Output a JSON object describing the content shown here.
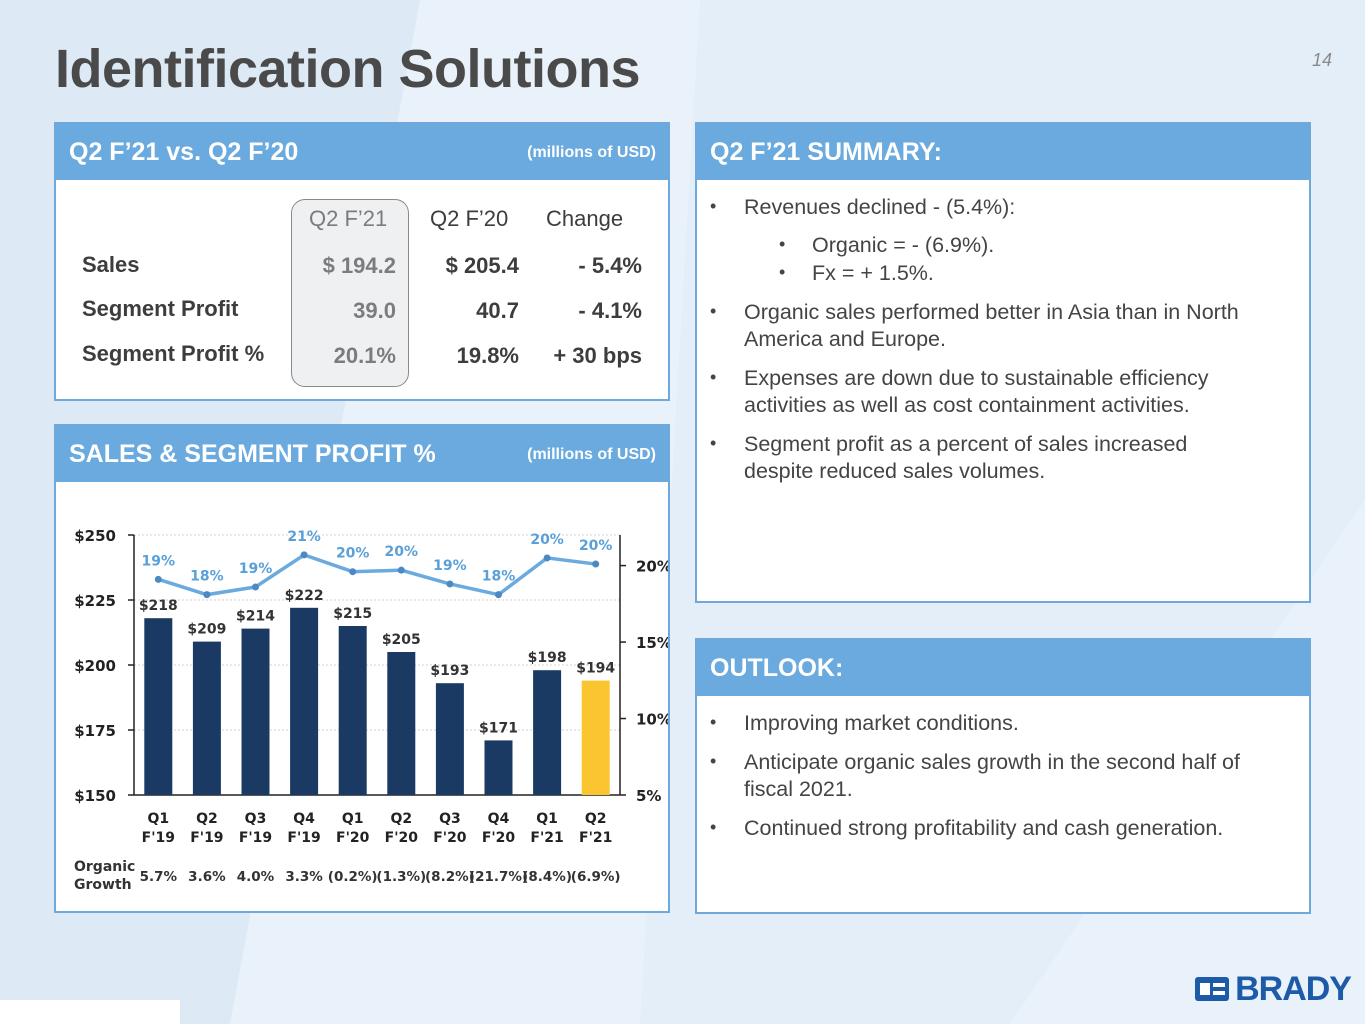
{
  "page": {
    "title": "Identification Solutions",
    "page_number": "14"
  },
  "comparison": {
    "header": "Q2 F’21 vs. Q2 F’20",
    "units": "(millions of USD)",
    "columns": [
      "Q2 F’21",
      "Q2 F’20",
      "Change"
    ],
    "rows": [
      {
        "label": "Sales",
        "q2_f21": "$ 194.2",
        "q2_f20": "$ 205.4",
        "change": "- 5.4%"
      },
      {
        "label": "Segment Profit",
        "q2_f21": "39.0",
        "q2_f20": "40.7",
        "change": "- 4.1%"
      },
      {
        "label": "Segment Profit %",
        "q2_f21": "20.1%",
        "q2_f20": "19.8%",
        "change": "+ 30 bps"
      }
    ]
  },
  "sales_panel": {
    "header": "SALES & SEGMENT PROFIT %",
    "units": "(millions of USD)",
    "organic_label_1": "Organic",
    "organic_label_2": "Growth",
    "organic_growth": [
      "5.7%",
      "3.6%",
      "4.0%",
      "3.3%",
      "(0.2%)",
      "(1.3%)",
      "(8.2%)",
      "(21.7%)",
      "(8.4%)",
      "(6.9%)"
    ]
  },
  "chart_data": {
    "type": "bar",
    "categories": [
      "Q1 F'19",
      "Q2 F'19",
      "Q3 F'19",
      "Q4 F'19",
      "Q1 F'20",
      "Q2 F'20",
      "Q3 F'20",
      "Q4 F'20",
      "Q1 F'21",
      "Q2 F'21"
    ],
    "category_lines": [
      [
        "Q1",
        "F'19"
      ],
      [
        "Q2",
        "F'19"
      ],
      [
        "Q3",
        "F'19"
      ],
      [
        "Q4",
        "F'19"
      ],
      [
        "Q1",
        "F'20"
      ],
      [
        "Q2",
        "F'20"
      ],
      [
        "Q3",
        "F'20"
      ],
      [
        "Q4",
        "F'20"
      ],
      [
        "Q1",
        "F'21"
      ],
      [
        "Q2",
        "F'21"
      ]
    ],
    "series": [
      {
        "type": "bar",
        "values": [
          218,
          209,
          214,
          222,
          215,
          205,
          193,
          171,
          198,
          194
        ],
        "labels": [
          "$218",
          "$209",
          "$214",
          "$222",
          "$215",
          "$205",
          "$193",
          "$171",
          "$198",
          "$194"
        ]
      },
      {
        "type": "line",
        "axis": "right",
        "values": [
          19,
          18,
          19,
          21,
          20,
          20,
          19,
          18,
          20,
          20
        ],
        "labels": [
          "19%",
          "18%",
          "19%",
          "21%",
          "20%",
          "20%",
          "19%",
          "18%",
          "20%",
          "20%"
        ],
        "plot_values": [
          19.1,
          18.1,
          18.6,
          20.7,
          19.6,
          19.7,
          18.8,
          18.1,
          20.5,
          20.1
        ]
      }
    ],
    "ylim": [
      150,
      250
    ],
    "yticks": [
      "$250",
      "$225",
      "$200",
      "$175",
      "$150"
    ],
    "ytick_values": [
      250,
      225,
      200,
      175,
      150
    ],
    "y2lim": [
      5,
      22
    ],
    "y2ticks": [
      "20%",
      "15%",
      "10%",
      "5%"
    ],
    "y2tick_values": [
      20,
      15,
      10,
      5
    ],
    "title": "",
    "xlabel": "",
    "ylabel": "",
    "colors": {
      "bar": "#1b3a63",
      "highlight_bar": "#fbc531",
      "line": "#6aaadf",
      "label_line": "#5aa0d8"
    },
    "grid": true
  },
  "summary": {
    "header": "Q2 F’21 SUMMARY:",
    "b1": "Revenues declined - (5.4%):",
    "b1a": "Organic = - (6.9%).",
    "b1b": "Fx = + 1.5%.",
    "b2_l1": "Organic sales performed better in Asia than in North",
    "b2_l2": "America and Europe.",
    "b3_l1": "Expenses are down due to sustainable efficiency",
    "b3_l2": "activities as well as cost containment activities.",
    "b4_l1": "Segment profit as a percent of sales increased",
    "b4_l2": "despite reduced sales volumes."
  },
  "outlook": {
    "header": "OUTLOOK:",
    "b1": "Improving market conditions.",
    "b2_l1": "Anticipate organic sales growth in the second half of",
    "b2_l2": "fiscal 2021.",
    "b3": "Continued strong profitability and cash generation."
  },
  "brand": {
    "name": "BRADY",
    "color": "#1d5aa8",
    "icon": "brady-logo-icon"
  },
  "bullet_char": "•"
}
